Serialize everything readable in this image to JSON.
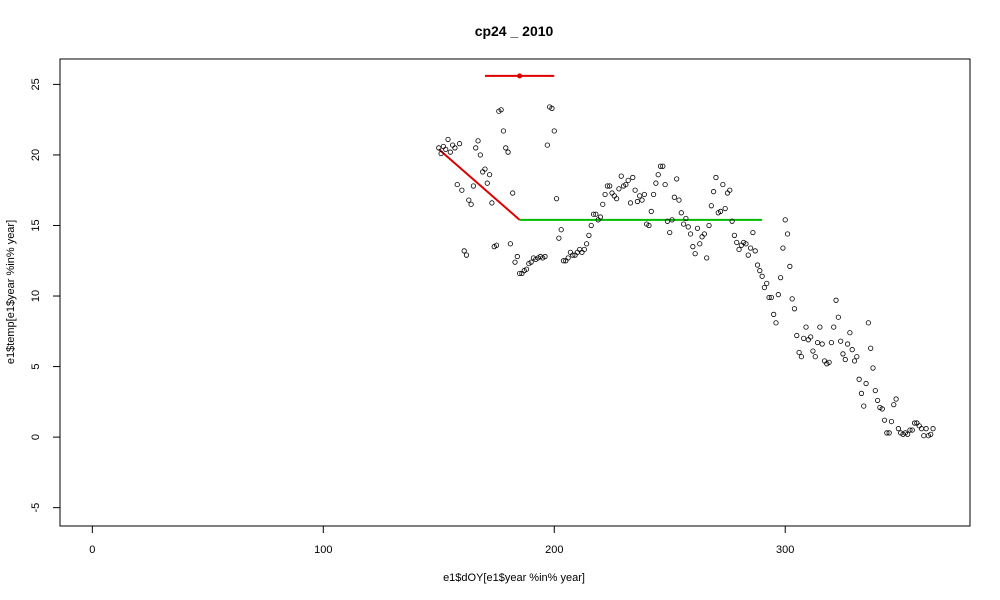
{
  "chart_data": {
    "type": "scatter",
    "title": "cp24 _ 2010",
    "xlabel": "e1$dOY[e1$year %in% year]",
    "ylabel": "e1$temp[e1$year %in% year]",
    "xlim": [
      -14,
      380
    ],
    "ylim": [
      -6.3,
      26.8
    ],
    "xticks": [
      0,
      100,
      200,
      300
    ],
    "xtick_labels": [
      "0",
      "100",
      "200",
      "300"
    ],
    "yticks": [
      -5,
      0,
      5,
      10,
      15,
      20,
      25
    ],
    "ytick_labels": [
      "-5",
      "0",
      "5",
      "10",
      "15",
      "20",
      "25"
    ],
    "grid": false,
    "legend": "none",
    "points": [
      [
        150,
        20.5
      ],
      [
        151,
        20.1
      ],
      [
        152,
        20.6
      ],
      [
        153,
        20.4
      ],
      [
        154,
        21.1
      ],
      [
        155,
        20.2
      ],
      [
        156,
        20.7
      ],
      [
        157,
        20.5
      ],
      [
        158,
        17.9
      ],
      [
        159,
        20.8
      ],
      [
        160,
        17.5
      ],
      [
        161,
        13.2
      ],
      [
        162,
        12.9
      ],
      [
        163,
        16.8
      ],
      [
        164,
        16.5
      ],
      [
        165,
        17.8
      ],
      [
        166,
        20.5
      ],
      [
        167,
        21.0
      ],
      [
        168,
        20.0
      ],
      [
        169,
        18.8
      ],
      [
        170,
        19.0
      ],
      [
        171,
        18.0
      ],
      [
        172,
        18.6
      ],
      [
        173,
        16.6
      ],
      [
        174,
        13.5
      ],
      [
        175,
        13.6
      ],
      [
        176,
        23.1
      ],
      [
        177,
        23.2
      ],
      [
        178,
        21.7
      ],
      [
        179,
        20.5
      ],
      [
        180,
        20.2
      ],
      [
        181,
        13.7
      ],
      [
        182,
        17.3
      ],
      [
        183,
        12.4
      ],
      [
        184,
        12.8
      ],
      [
        185,
        11.6
      ],
      [
        186,
        11.6
      ],
      [
        187,
        11.8
      ],
      [
        188,
        11.9
      ],
      [
        189,
        12.3
      ],
      [
        190,
        12.4
      ],
      [
        191,
        12.7
      ],
      [
        192,
        12.6
      ],
      [
        193,
        12.7
      ],
      [
        194,
        12.8
      ],
      [
        195,
        12.7
      ],
      [
        196,
        12.8
      ],
      [
        197,
        20.7
      ],
      [
        198,
        23.4
      ],
      [
        199,
        23.3
      ],
      [
        200,
        21.7
      ],
      [
        201,
        16.9
      ],
      [
        202,
        14.1
      ],
      [
        203,
        14.7
      ],
      [
        204,
        12.5
      ],
      [
        205,
        12.5
      ],
      [
        206,
        12.7
      ],
      [
        207,
        13.1
      ],
      [
        208,
        12.9
      ],
      [
        209,
        12.9
      ],
      [
        210,
        13.1
      ],
      [
        211,
        13.3
      ],
      [
        212,
        13.1
      ],
      [
        213,
        13.3
      ],
      [
        214,
        13.7
      ],
      [
        215,
        14.3
      ],
      [
        216,
        15.0
      ],
      [
        217,
        15.8
      ],
      [
        218,
        15.8
      ],
      [
        219,
        15.4
      ],
      [
        220,
        15.6
      ],
      [
        221,
        16.5
      ],
      [
        222,
        17.2
      ],
      [
        223,
        17.8
      ],
      [
        224,
        17.8
      ],
      [
        225,
        17.3
      ],
      [
        226,
        17.1
      ],
      [
        227,
        16.9
      ],
      [
        228,
        17.6
      ],
      [
        229,
        18.5
      ],
      [
        230,
        17.8
      ],
      [
        231,
        17.9
      ],
      [
        232,
        18.2
      ],
      [
        233,
        16.6
      ],
      [
        234,
        18.4
      ],
      [
        235,
        17.5
      ],
      [
        236,
        16.7
      ],
      [
        237,
        17.1
      ],
      [
        238,
        16.8
      ],
      [
        239,
        17.2
      ],
      [
        240,
        15.1
      ],
      [
        241,
        15.0
      ],
      [
        242,
        16.0
      ],
      [
        243,
        17.2
      ],
      [
        244,
        18.0
      ],
      [
        245,
        18.6
      ],
      [
        246,
        19.2
      ],
      [
        247,
        19.2
      ],
      [
        248,
        17.9
      ],
      [
        249,
        15.3
      ],
      [
        250,
        14.5
      ],
      [
        251,
        15.4
      ],
      [
        252,
        17.0
      ],
      [
        253,
        18.3
      ],
      [
        254,
        16.8
      ],
      [
        255,
        15.9
      ],
      [
        256,
        15.1
      ],
      [
        257,
        15.5
      ],
      [
        258,
        14.9
      ],
      [
        259,
        14.4
      ],
      [
        260,
        13.5
      ],
      [
        261,
        13.0
      ],
      [
        262,
        14.8
      ],
      [
        263,
        13.7
      ],
      [
        264,
        14.2
      ],
      [
        265,
        14.4
      ],
      [
        266,
        12.7
      ],
      [
        267,
        15.0
      ],
      [
        268,
        16.4
      ],
      [
        269,
        17.4
      ],
      [
        270,
        18.4
      ],
      [
        271,
        15.9
      ],
      [
        272,
        16.0
      ],
      [
        273,
        17.9
      ],
      [
        274,
        16.2
      ],
      [
        275,
        17.3
      ],
      [
        276,
        17.5
      ],
      [
        277,
        15.3
      ],
      [
        278,
        14.3
      ],
      [
        279,
        13.8
      ],
      [
        280,
        13.3
      ],
      [
        281,
        13.6
      ],
      [
        282,
        13.8
      ],
      [
        283,
        13.7
      ],
      [
        284,
        12.9
      ],
      [
        285,
        13.4
      ],
      [
        286,
        14.5
      ],
      [
        287,
        13.2
      ],
      [
        288,
        12.2
      ],
      [
        289,
        11.8
      ],
      [
        290,
        11.4
      ],
      [
        291,
        10.6
      ],
      [
        292,
        10.9
      ],
      [
        293,
        9.9
      ],
      [
        294,
        9.9
      ],
      [
        295,
        8.7
      ],
      [
        296,
        8.1
      ],
      [
        297,
        10.1
      ],
      [
        298,
        11.3
      ],
      [
        299,
        13.4
      ],
      [
        300,
        15.4
      ],
      [
        301,
        14.4
      ],
      [
        302,
        12.1
      ],
      [
        303,
        9.8
      ],
      [
        304,
        9.1
      ],
      [
        305,
        7.2
      ],
      [
        306,
        6.0
      ],
      [
        307,
        5.7
      ],
      [
        308,
        7.0
      ],
      [
        309,
        7.8
      ],
      [
        310,
        6.9
      ],
      [
        311,
        7.1
      ],
      [
        312,
        6.1
      ],
      [
        313,
        5.7
      ],
      [
        314,
        6.7
      ],
      [
        315,
        7.8
      ],
      [
        316,
        6.6
      ],
      [
        317,
        5.4
      ],
      [
        318,
        5.2
      ],
      [
        319,
        5.3
      ],
      [
        320,
        6.7
      ],
      [
        321,
        7.8
      ],
      [
        322,
        9.7
      ],
      [
        323,
        8.5
      ],
      [
        324,
        6.8
      ],
      [
        325,
        5.9
      ],
      [
        326,
        5.5
      ],
      [
        327,
        6.6
      ],
      [
        328,
        7.4
      ],
      [
        329,
        6.2
      ],
      [
        330,
        5.4
      ],
      [
        331,
        5.7
      ],
      [
        332,
        4.1
      ],
      [
        333,
        3.1
      ],
      [
        334,
        2.2
      ],
      [
        335,
        3.8
      ],
      [
        336,
        8.1
      ],
      [
        337,
        6.3
      ],
      [
        338,
        4.9
      ],
      [
        339,
        3.3
      ],
      [
        340,
        2.6
      ],
      [
        341,
        2.1
      ],
      [
        342,
        2.0
      ],
      [
        343,
        1.2
      ],
      [
        344,
        0.3
      ],
      [
        345,
        0.3
      ],
      [
        346,
        1.1
      ],
      [
        347,
        2.3
      ],
      [
        348,
        2.7
      ],
      [
        349,
        0.6
      ],
      [
        350,
        0.3
      ],
      [
        351,
        0.2
      ],
      [
        352,
        0.3
      ],
      [
        353,
        0.2
      ],
      [
        354,
        0.5
      ],
      [
        355,
        0.5
      ],
      [
        356,
        1.0
      ],
      [
        357,
        1.0
      ],
      [
        358,
        0.8
      ],
      [
        359,
        0.6
      ],
      [
        360,
        0.1
      ],
      [
        361,
        0.6
      ],
      [
        362,
        0.1
      ],
      [
        363,
        0.2
      ],
      [
        364,
        0.6
      ]
    ],
    "lines": [
      {
        "name": "decline-segment",
        "color": "#dd0000",
        "x": [
          150,
          185
        ],
        "y": [
          20.4,
          15.4
        ]
      },
      {
        "name": "plateau-segment",
        "color": "#00bb00",
        "x": [
          185,
          290
        ],
        "y": [
          15.4,
          15.4
        ]
      },
      {
        "name": "peak-range",
        "color": "#dd0000",
        "x": [
          170,
          200
        ],
        "y": [
          25.6,
          25.6
        ],
        "marker_x": 185
      }
    ]
  }
}
